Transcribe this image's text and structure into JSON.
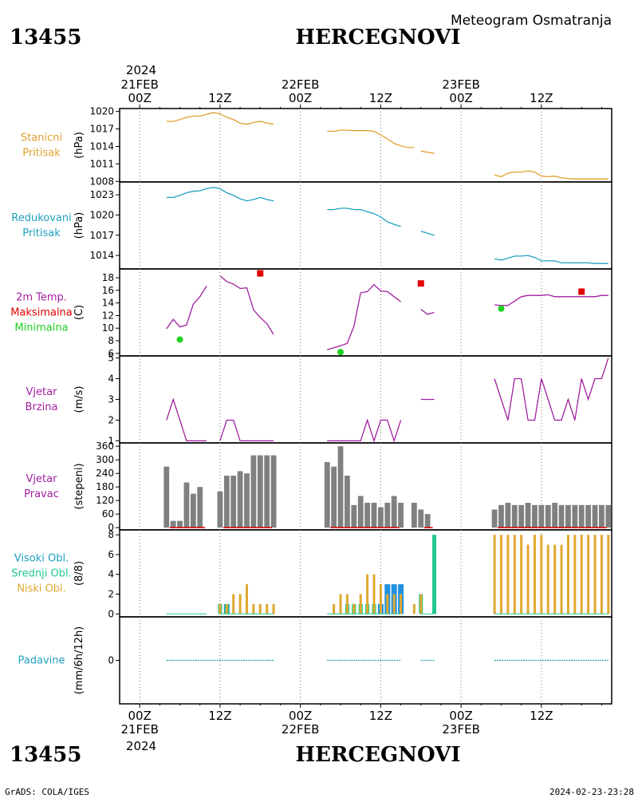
{
  "header": {
    "station_id": "13455",
    "station_name": "HERCEGNOVI",
    "subtitle": "Meteogram Osmatranja"
  },
  "footer": {
    "station_id": "13455",
    "station_name": "HERCEGNOVI",
    "credit": "GrADS: COLA/IGES",
    "timestamp": "2024-02-23-23:28"
  },
  "time_axis": {
    "top_year": "2024",
    "bottom_year": "2024",
    "ticks": [
      {
        "t": 0,
        "label": "00Z",
        "date": "21FEB"
      },
      {
        "t": 12,
        "label": "12Z",
        "date": ""
      },
      {
        "t": 24,
        "label": "00Z",
        "date": "22FEB"
      },
      {
        "t": 36,
        "label": "12Z",
        "date": ""
      },
      {
        "t": 48,
        "label": "00Z",
        "date": "23FEB"
      },
      {
        "t": 60,
        "label": "12Z",
        "date": ""
      }
    ],
    "range_hours": [
      -3,
      70.5
    ]
  },
  "colors": {
    "station_pressure": "#e0a030",
    "reduced_pressure": "#20a0c0",
    "temperature": "#a020a0",
    "tmax": "#e00000",
    "tmin": "#20d020",
    "wind": "#a020a0",
    "wind_dir_bar": "#808080",
    "high_cloud": "#2090e0",
    "mid_cloud": "#20c890",
    "low_cloud": "#e0a830",
    "precip": "#20a0c0"
  },
  "chart_data": [
    {
      "type": "line",
      "panel": "station_pressure",
      "labels": [
        "Stanicni",
        "Pritisak"
      ],
      "ylabel": "(hPa)",
      "yticks": [
        1008,
        1011,
        1014,
        1017,
        1020
      ],
      "ylim": [
        1007.9,
        1020.5
      ],
      "series": [
        {
          "x": [
            4,
            5,
            6,
            7,
            8,
            9,
            10,
            11,
            12,
            13,
            14,
            15,
            16,
            17,
            18,
            19,
            20
          ],
          "y": [
            1018.3,
            1018.3,
            1018.6,
            1019.0,
            1019.2,
            1019.2,
            1019.5,
            1019.8,
            1019.6,
            1019.0,
            1018.6,
            1018.0,
            1017.8,
            1018.1,
            1018.3,
            1018.0,
            1017.8
          ]
        },
        {
          "x": [
            28,
            29,
            30,
            31,
            32,
            33,
            34,
            35,
            36,
            37,
            38,
            39,
            40,
            41
          ],
          "y": [
            1016.6,
            1016.6,
            1016.8,
            1016.8,
            1016.7,
            1016.7,
            1016.7,
            1016.6,
            1016.0,
            1015.3,
            1014.5,
            1014.1,
            1013.8,
            1013.8
          ]
        },
        {
          "x": [
            42,
            43,
            44
          ],
          "y": [
            1013.2,
            1013.0,
            1012.8
          ]
        },
        {
          "x": [
            53,
            54,
            55,
            56,
            57,
            58,
            59,
            60,
            61,
            62,
            63,
            64,
            65,
            66,
            67,
            68,
            69,
            70
          ],
          "y": [
            1009.1,
            1008.8,
            1009.4,
            1009.6,
            1009.6,
            1009.8,
            1009.6,
            1008.9,
            1008.8,
            1008.9,
            1008.6,
            1008.5,
            1008.4,
            1008.4,
            1008.4,
            1008.4,
            1008.4,
            1008.4
          ]
        }
      ]
    },
    {
      "type": "line",
      "panel": "reduced_pressure",
      "labels": [
        "Redukovani",
        "Pritisak"
      ],
      "ylabel": "(hPa)",
      "yticks": [
        1014,
        1017,
        1020,
        1023
      ],
      "ylim": [
        1012.0,
        1024.9
      ],
      "series": [
        {
          "x": [
            4,
            5,
            6,
            7,
            8,
            9,
            10,
            11,
            12,
            13,
            14,
            15,
            16,
            17,
            18,
            19,
            20
          ],
          "y": [
            1022.6,
            1022.6,
            1022.9,
            1023.3,
            1023.5,
            1023.6,
            1023.9,
            1024.1,
            1023.9,
            1023.3,
            1022.9,
            1022.4,
            1022.1,
            1022.3,
            1022.6,
            1022.3,
            1022.1
          ]
        },
        {
          "x": [
            28,
            29,
            30,
            31,
            32,
            33,
            34,
            35,
            36,
            37,
            38,
            39
          ],
          "y": [
            1020.8,
            1020.8,
            1021.0,
            1021.0,
            1020.8,
            1020.8,
            1020.5,
            1020.2,
            1019.7,
            1019.0,
            1018.6,
            1018.3
          ]
        },
        {
          "x": [
            42,
            43,
            44
          ],
          "y": [
            1017.6,
            1017.3,
            1017.0
          ]
        },
        {
          "x": [
            53,
            54,
            55,
            56,
            57,
            58,
            59,
            60,
            61,
            62,
            63,
            64,
            65,
            66,
            67,
            68,
            69,
            70
          ],
          "y": [
            1013.5,
            1013.3,
            1013.6,
            1013.9,
            1013.9,
            1014.0,
            1013.7,
            1013.2,
            1013.2,
            1013.2,
            1012.9,
            1012.9,
            1012.9,
            1012.9,
            1012.9,
            1012.8,
            1012.8,
            1012.8
          ]
        }
      ]
    },
    {
      "type": "line",
      "panel": "temperature",
      "labels": [
        "2m Temp.",
        "Maksimalna",
        "Minimalna"
      ],
      "ylabel": "(C)",
      "yticks": [
        6,
        8,
        10,
        12,
        14,
        16,
        18
      ],
      "ylim": [
        5.6,
        19.4
      ],
      "series": [
        {
          "x": [
            4,
            5,
            6,
            7,
            8,
            9,
            10
          ],
          "y": [
            9.9,
            11.4,
            10.2,
            10.5,
            13.8,
            15.0,
            16.7
          ]
        },
        {
          "x": [
            12,
            13,
            14,
            15,
            16,
            17,
            18,
            19,
            20
          ],
          "y": [
            18.3,
            17.4,
            17.0,
            16.3,
            16.4,
            12.9,
            11.7,
            10.7,
            9.0
          ]
        },
        {
          "x": [
            28,
            29,
            30,
            31,
            32,
            33,
            34,
            35,
            36,
            37,
            38,
            39
          ],
          "y": [
            6.6,
            6.9,
            7.2,
            7.6,
            10.3,
            15.6,
            15.8,
            16.9,
            15.9,
            15.8,
            15.0,
            14.2
          ]
        },
        {
          "x": [
            42,
            43,
            44
          ],
          "y": [
            13.0,
            12.2,
            12.5
          ]
        },
        {
          "x": [
            53,
            54,
            55,
            56,
            57,
            58,
            59,
            60,
            61,
            62,
            63,
            64,
            65,
            66,
            67,
            68,
            69,
            70
          ],
          "y": [
            13.7,
            13.6,
            13.6,
            14.3,
            15.0,
            15.2,
            15.2,
            15.2,
            15.3,
            15.0,
            15.0,
            15.0,
            15.0,
            15.0,
            15.0,
            15.0,
            15.2,
            15.2
          ]
        }
      ],
      "tmax": [
        {
          "x": 18,
          "y": 18.7
        },
        {
          "x": 42,
          "y": 17.1
        },
        {
          "x": 66,
          "y": 15.8
        }
      ],
      "tmin": [
        {
          "x": 6,
          "y": 8.2
        },
        {
          "x": 30,
          "y": 6.2
        },
        {
          "x": 54,
          "y": 13.1
        }
      ]
    },
    {
      "type": "line",
      "panel": "wind_speed",
      "labels": [
        "Vjetar",
        "Brzina"
      ],
      "ylabel": "(m/s)",
      "yticks": [
        1,
        2,
        3,
        4,
        5
      ],
      "ylim": [
        0.9,
        5.1
      ],
      "series": [
        {
          "x": [
            4,
            5,
            6,
            7,
            8,
            9,
            10
          ],
          "y": [
            2,
            3,
            2,
            1,
            1,
            1,
            1
          ]
        },
        {
          "x": [
            12,
            13,
            14,
            15,
            16,
            17,
            18,
            19,
            20
          ],
          "y": [
            1,
            2,
            2,
            1,
            1,
            1,
            1,
            1,
            1
          ]
        },
        {
          "x": [
            28,
            29,
            30,
            31,
            32,
            33,
            34,
            35,
            36,
            37,
            38,
            39
          ],
          "y": [
            1,
            1,
            1,
            1,
            1,
            1,
            2,
            1,
            2,
            2,
            1,
            2
          ]
        },
        {
          "x": [
            42,
            43,
            44
          ],
          "y": [
            3,
            3,
            3
          ]
        },
        {
          "x": [
            53,
            54,
            55,
            56,
            57,
            58,
            59,
            60,
            61,
            62,
            63,
            64,
            65,
            66,
            67,
            68,
            69,
            70
          ],
          "y": [
            4,
            3,
            2,
            4,
            4,
            2,
            2,
            4,
            3,
            2,
            2,
            3,
            2,
            4,
            3,
            4,
            4,
            5
          ]
        }
      ]
    },
    {
      "type": "bar",
      "panel": "wind_direction",
      "labels": [
        "Vjetar",
        "Pravac"
      ],
      "ylabel": "(stepeni)",
      "yticks": [
        0,
        60,
        120,
        180,
        240,
        300,
        360
      ],
      "ylim": [
        -10,
        375
      ],
      "x": [
        4,
        5,
        6,
        7,
        8,
        9,
        10,
        11,
        12,
        13,
        14,
        15,
        16,
        17,
        18,
        19,
        20,
        28,
        29,
        30,
        31,
        32,
        33,
        34,
        35,
        36,
        37,
        38,
        39,
        41,
        42,
        43,
        53,
        54,
        55,
        56,
        57,
        58,
        59,
        60,
        61,
        62,
        63,
        64,
        65,
        66,
        67,
        68,
        69,
        70
      ],
      "values": [
        270,
        30,
        30,
        200,
        150,
        180,
        0,
        0,
        160,
        230,
        230,
        250,
        240,
        320,
        320,
        320,
        320,
        290,
        270,
        360,
        230,
        100,
        140,
        110,
        110,
        90,
        110,
        140,
        110,
        110,
        80,
        60,
        80,
        100,
        110,
        100,
        100,
        110,
        100,
        100,
        100,
        110,
        100,
        100,
        100,
        100,
        100,
        100,
        100,
        100
      ],
      "calm_line_value": 0
    },
    {
      "type": "bar",
      "panel": "clouds",
      "labels": [
        "Visoki Obl.",
        "Srednji Obl.",
        "Niski Obl."
      ],
      "ylabel": "(8/8)",
      "yticks": [
        0,
        2,
        4,
        6,
        8
      ],
      "ylim": [
        -0.3,
        8.5
      ],
      "series": [
        {
          "name": "Visoki Obl.",
          "x": [
            13,
            36,
            37,
            38,
            39
          ],
          "values": [
            1,
            1,
            3,
            3,
            3
          ]
        },
        {
          "name": "Srednji Obl.",
          "x": [
            12,
            13,
            31,
            32,
            33,
            34,
            35,
            42,
            44
          ],
          "values": [
            1,
            1,
            1,
            1,
            1,
            1,
            1,
            2,
            8
          ]
        },
        {
          "name": "Niski Obl.",
          "x": [
            12,
            13,
            14,
            15,
            16,
            17,
            18,
            19,
            20,
            29,
            30,
            31,
            32,
            33,
            34,
            35,
            36,
            37,
            38,
            39,
            41,
            42,
            53,
            54,
            55,
            56,
            57,
            58,
            59,
            60,
            61,
            62,
            63,
            64,
            65,
            66,
            67,
            68,
            69,
            70
          ],
          "values": [
            1,
            1,
            2,
            2,
            3,
            1,
            1,
            1,
            1,
            1,
            2,
            2,
            1,
            2,
            4,
            4,
            3,
            2,
            2,
            2,
            1,
            2,
            8,
            8,
            8,
            8,
            8,
            7,
            8,
            8,
            7,
            7,
            7,
            8,
            8,
            8,
            8,
            8,
            8,
            8
          ]
        }
      ]
    },
    {
      "type": "line",
      "panel": "precipitation",
      "labels": [
        "Padavine"
      ],
      "ylabel": "(mm/6h/12h)",
      "yticks": [
        0
      ],
      "ylim": [
        -1,
        1
      ],
      "series": [
        {
          "x": [
            4,
            20
          ],
          "y": [
            0,
            0
          ]
        },
        {
          "x": [
            28,
            39
          ],
          "y": [
            0,
            0
          ]
        },
        {
          "x": [
            42,
            44
          ],
          "y": [
            0,
            0
          ]
        },
        {
          "x": [
            53,
            70
          ],
          "y": [
            0,
            0
          ]
        }
      ]
    }
  ]
}
